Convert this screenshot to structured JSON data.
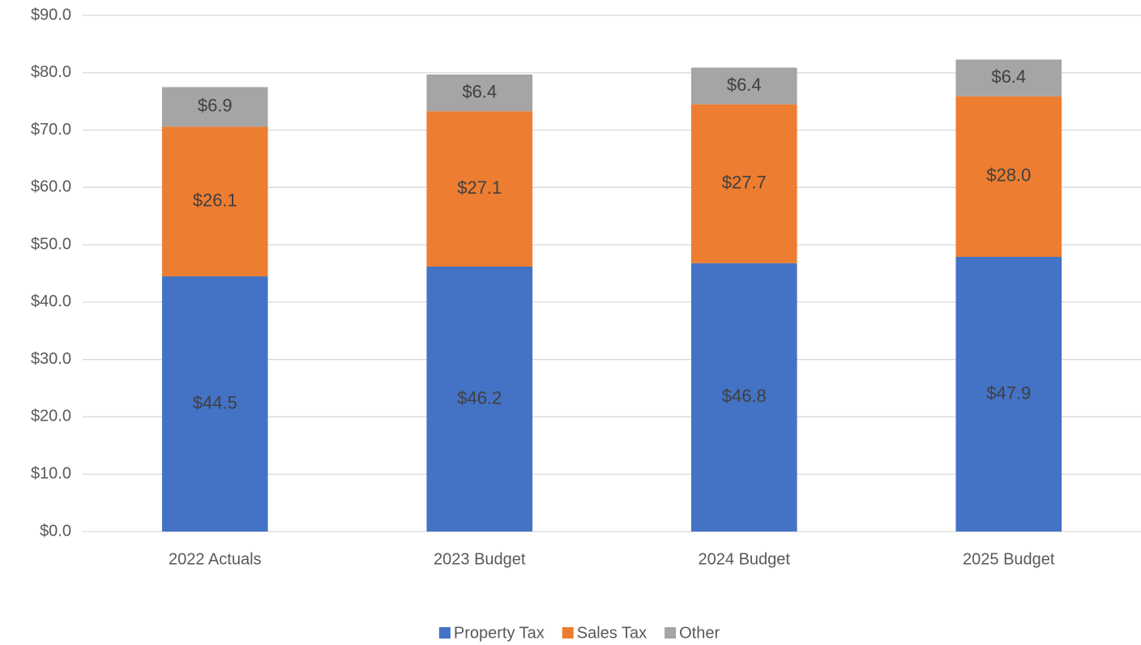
{
  "chart_data": {
    "type": "stacked_bar",
    "categories": [
      "2022 Actuals",
      "2023 Budget",
      "2024 Budget",
      "2025 Budget"
    ],
    "series": [
      {
        "name": "Property Tax",
        "color": "#4472c4",
        "values": [
          44.5,
          46.2,
          46.8,
          47.9
        ],
        "value_labels": [
          "$44.5",
          "$46.2",
          "$46.8",
          "$47.9"
        ]
      },
      {
        "name": "Sales Tax",
        "color": "#ed7d31",
        "values": [
          26.1,
          27.1,
          27.7,
          28.0
        ],
        "value_labels": [
          "$26.1",
          "$27.1",
          "$27.7",
          "$28.0"
        ]
      },
      {
        "name": "Other",
        "color": "#a5a5a5",
        "values": [
          6.9,
          6.4,
          6.4,
          6.4
        ],
        "value_labels": [
          "$6.9",
          "$6.4",
          "$6.4",
          "$6.4"
        ]
      }
    ],
    "ylim": [
      0,
      90
    ],
    "yticks": [
      {
        "value": 0,
        "label": "$0.0"
      },
      {
        "value": 10,
        "label": "$10.0"
      },
      {
        "value": 20,
        "label": "$20.0"
      },
      {
        "value": 30,
        "label": "$30.0"
      },
      {
        "value": 40,
        "label": "$40.0"
      },
      {
        "value": 50,
        "label": "$50.0"
      },
      {
        "value": 60,
        "label": "$60.0"
      },
      {
        "value": 70,
        "label": "$70.0"
      },
      {
        "value": 80,
        "label": "$80.0"
      },
      {
        "value": 90,
        "label": "$90.0"
      }
    ],
    "grid": true,
    "legend": "bottom"
  }
}
